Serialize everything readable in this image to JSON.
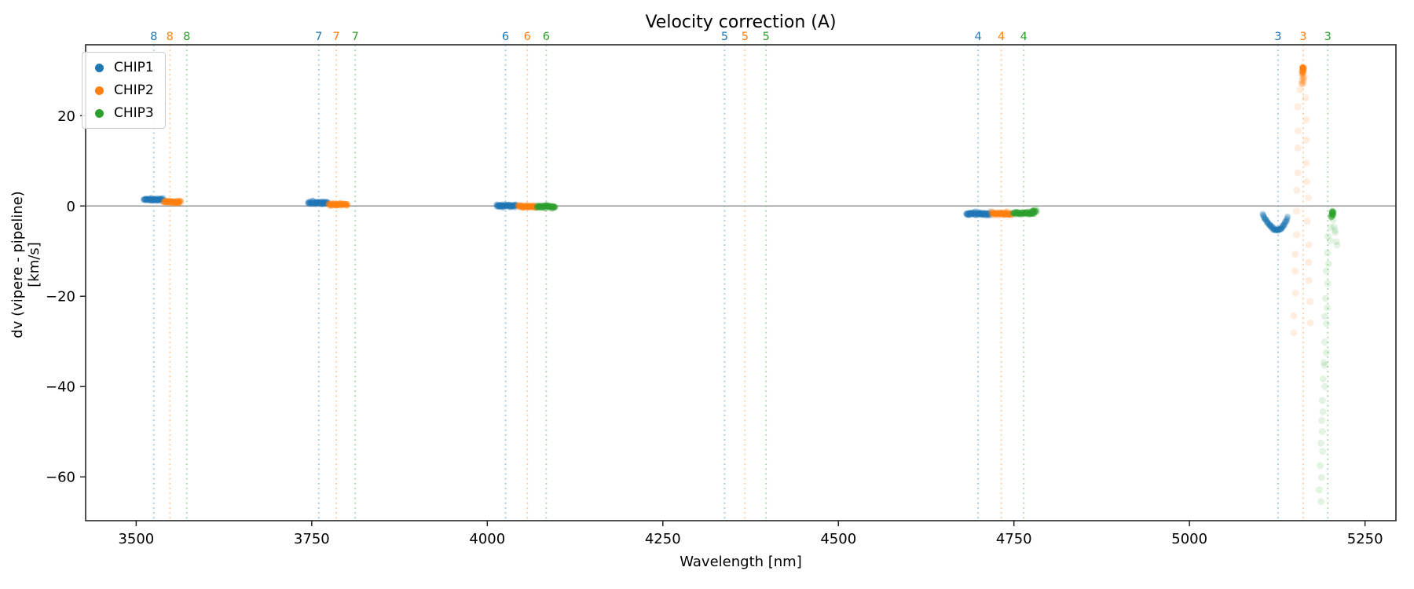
{
  "title": "Velocity correction (A)",
  "xlabel": "Wavelength [nm]",
  "ylabel": "dv (vipere - pipeline) [km/s]",
  "legend": {
    "items": [
      {
        "label": "CHIP1",
        "color": "#1f77b4"
      },
      {
        "label": "CHIP2",
        "color": "#ff7f0e"
      },
      {
        "label": "CHIP3",
        "color": "#2ca02c"
      }
    ]
  },
  "chart_data": {
    "type": "scatter",
    "title": "Velocity correction (A)",
    "xlabel": "Wavelength [nm]",
    "ylabel": "dv (vipere - pipeline) [km/s]",
    "xlim": [
      3428,
      5294
    ],
    "ylim": [
      -69.7,
      35.7
    ],
    "grid": false,
    "ref_line_v": 0,
    "ref_line_color": "#808080",
    "x_ticks": [
      {
        "v": 3500,
        "label": "3500"
      },
      {
        "v": 3750,
        "label": "3750"
      },
      {
        "v": 4000,
        "label": "4000"
      },
      {
        "v": 4250,
        "label": "4250"
      },
      {
        "v": 4500,
        "label": "4500"
      },
      {
        "v": 4750,
        "label": "4750"
      },
      {
        "v": 5000,
        "label": "5000"
      },
      {
        "v": 5250,
        "label": "5250"
      }
    ],
    "y_ticks": [
      {
        "v": 20,
        "label": "20"
      },
      {
        "v": 0,
        "label": "0"
      },
      {
        "v": -20,
        "label": "−20"
      },
      {
        "v": -40,
        "label": "−40"
      },
      {
        "v": -60,
        "label": "−60"
      }
    ],
    "order_markers": [
      {
        "label": "8",
        "series": 0,
        "nm": 3525
      },
      {
        "label": "8",
        "series": 1,
        "nm": 3548
      },
      {
        "label": "8",
        "series": 2,
        "nm": 3572
      },
      {
        "label": "7",
        "series": 0,
        "nm": 3760
      },
      {
        "label": "7",
        "series": 1,
        "nm": 3785
      },
      {
        "label": "7",
        "series": 2,
        "nm": 3812
      },
      {
        "label": "6",
        "series": 0,
        "nm": 4026
      },
      {
        "label": "6",
        "series": 1,
        "nm": 4057
      },
      {
        "label": "6",
        "series": 2,
        "nm": 4084
      },
      {
        "label": "5",
        "series": 0,
        "nm": 4338
      },
      {
        "label": "5",
        "series": 1,
        "nm": 4367
      },
      {
        "label": "5",
        "series": 2,
        "nm": 4397
      },
      {
        "label": "4",
        "series": 0,
        "nm": 4699
      },
      {
        "label": "4",
        "series": 1,
        "nm": 4732
      },
      {
        "label": "4",
        "series": 2,
        "nm": 4764
      },
      {
        "label": "3",
        "series": 0,
        "nm": 5126
      },
      {
        "label": "3",
        "series": 1,
        "nm": 5162
      },
      {
        "label": "3",
        "series": 2,
        "nm": 5197
      }
    ],
    "series": [
      {
        "name": "CHIP1",
        "color": "#1f77b4",
        "clusters": [
          {
            "kind": "band",
            "nm_start": 3511,
            "nm_end": 3538,
            "v": 1.4,
            "v_sigma": 0.16
          },
          {
            "kind": "band",
            "nm_start": 3745,
            "nm_end": 3773,
            "v": 0.7,
            "v_sigma": 0.16
          },
          {
            "kind": "band",
            "nm_start": 4013,
            "nm_end": 4041,
            "v": 0.05,
            "v_sigma": 0.16
          },
          {
            "kind": "band",
            "nm_start": 4682,
            "nm_end": 4716,
            "v": -1.75,
            "v_sigma": 0.2
          },
          {
            "kind": "u_curve",
            "nm_start": 5104,
            "nm_min": 5126,
            "nm_end": 5140,
            "v_start": -1.7,
            "v_min": -5.3,
            "v_end": -2.4
          }
        ]
      },
      {
        "name": "CHIP2",
        "color": "#ff7f0e",
        "clusters": [
          {
            "kind": "band",
            "nm_start": 3539,
            "nm_end": 3564,
            "v": 0.95,
            "v_sigma": 0.16
          },
          {
            "kind": "band",
            "nm_start": 3774,
            "nm_end": 3801,
            "v": 0.35,
            "v_sigma": 0.16
          },
          {
            "kind": "band",
            "nm_start": 4044,
            "nm_end": 4070,
            "v": -0.1,
            "v_sigma": 0.16
          },
          {
            "kind": "band",
            "nm_start": 4718,
            "nm_end": 4747,
            "v": -1.75,
            "v_sigma": 0.2
          },
          {
            "kind": "burst",
            "nm_center": 5161.5,
            "v_peak": 30.8,
            "trail_v_start": 28,
            "trail_v_end": -28,
            "trail_n": 26,
            "spread_nm_start": 4,
            "spread_nm_end": 13
          }
        ]
      },
      {
        "name": "CHIP3",
        "color": "#2ca02c",
        "clusters": [
          {
            "kind": "band",
            "nm_start": 4070,
            "nm_end": 4097,
            "v": -0.15,
            "v_sigma": 0.16
          },
          {
            "kind": "band",
            "nm_start": 4749,
            "nm_end": 4779,
            "v": -1.6,
            "v_sigma": 0.18
          },
          {
            "kind": "band",
            "nm_start": 4776,
            "nm_end": 4782,
            "v": -1.15,
            "v_sigma": 0.15,
            "n": 14
          },
          {
            "kind": "blob_trail",
            "blob_nm": 5203.5,
            "blob_v": -1.9,
            "trail_nm_start": 5199,
            "trail_nm_end": 5186,
            "trail_v_start": -3.5,
            "trail_v_end": -64,
            "trail_n": 27,
            "branch": {
              "nm_start": 5205,
              "nm_end": 5210,
              "v_start": -3,
              "v_end": -8.5,
              "n": 6
            }
          }
        ]
      }
    ]
  }
}
